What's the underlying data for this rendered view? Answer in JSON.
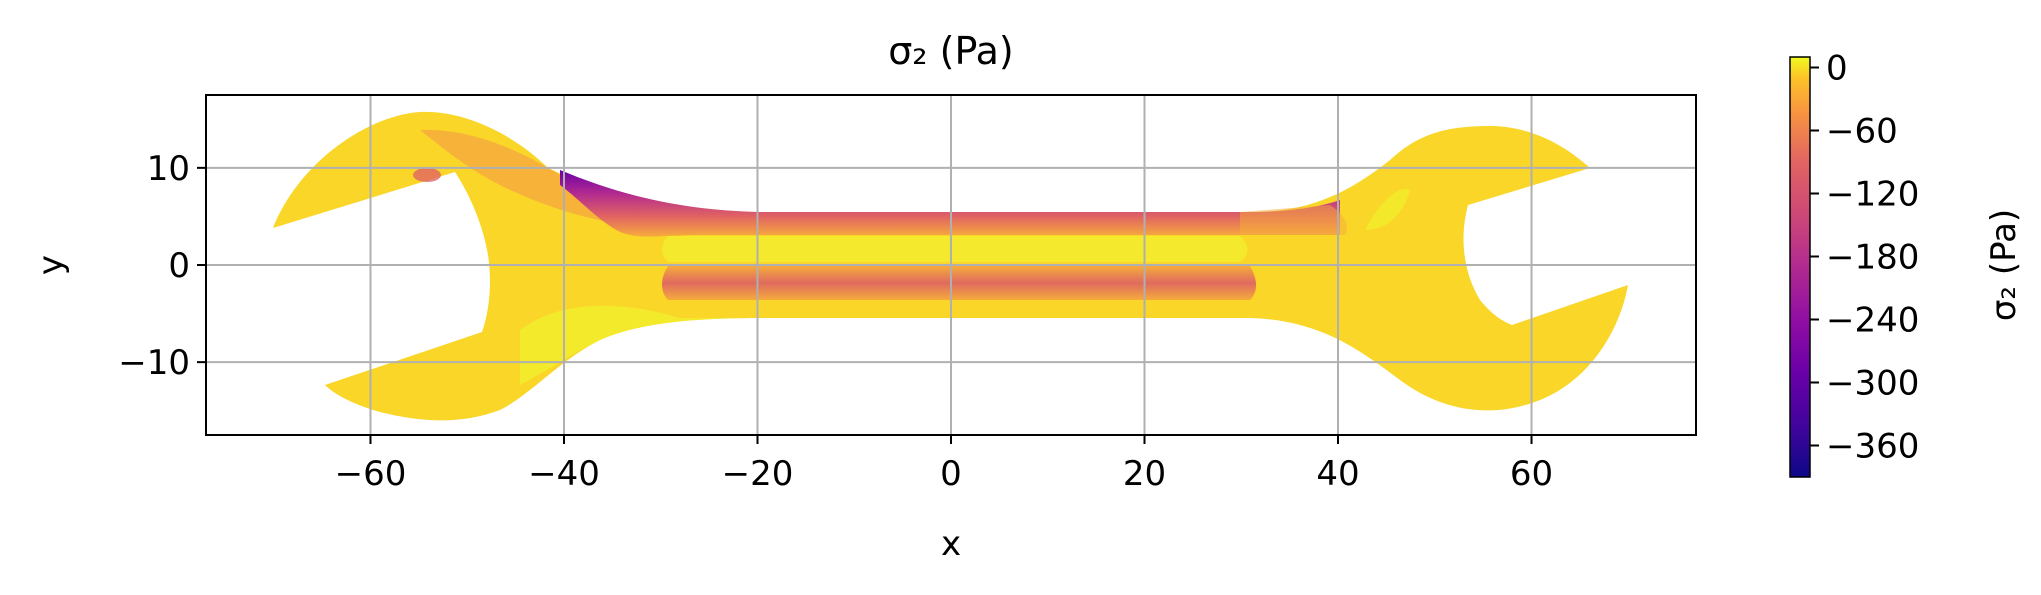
{
  "chart_data": {
    "type": "heatmap",
    "title": "σ₂ (Pa)",
    "xlabel": "x",
    "ylabel": "y",
    "xlim": [
      -77,
      77
    ],
    "ylim": [
      -17.5,
      17.5
    ],
    "grid": true,
    "xticks": [
      -60,
      -40,
      -20,
      0,
      20,
      40,
      60
    ],
    "xtick_labels": [
      "−60",
      "−40",
      "−20",
      "0",
      "20",
      "40",
      "60"
    ],
    "yticks": [
      10,
      0,
      -10
    ],
    "ytick_labels": [
      "10",
      "0",
      "−10"
    ],
    "colormap": "plasma",
    "colorbar": {
      "label": "σ₂ (Pa)",
      "range": [
        -390,
        10
      ],
      "ticks": [
        0,
        -60,
        -120,
        -180,
        -240,
        -300,
        -360
      ],
      "tick_labels": [
        "0",
        "−60",
        "−120",
        "−180",
        "−240",
        "−300",
        "−360"
      ]
    },
    "colors": {
      "background_field": "#f9d628",
      "mild_compression": "#f6ab3c",
      "moderate_compression": "#d8576b",
      "strong_compression": "#6a00a8",
      "grid": "#b0b0b0"
    }
  }
}
